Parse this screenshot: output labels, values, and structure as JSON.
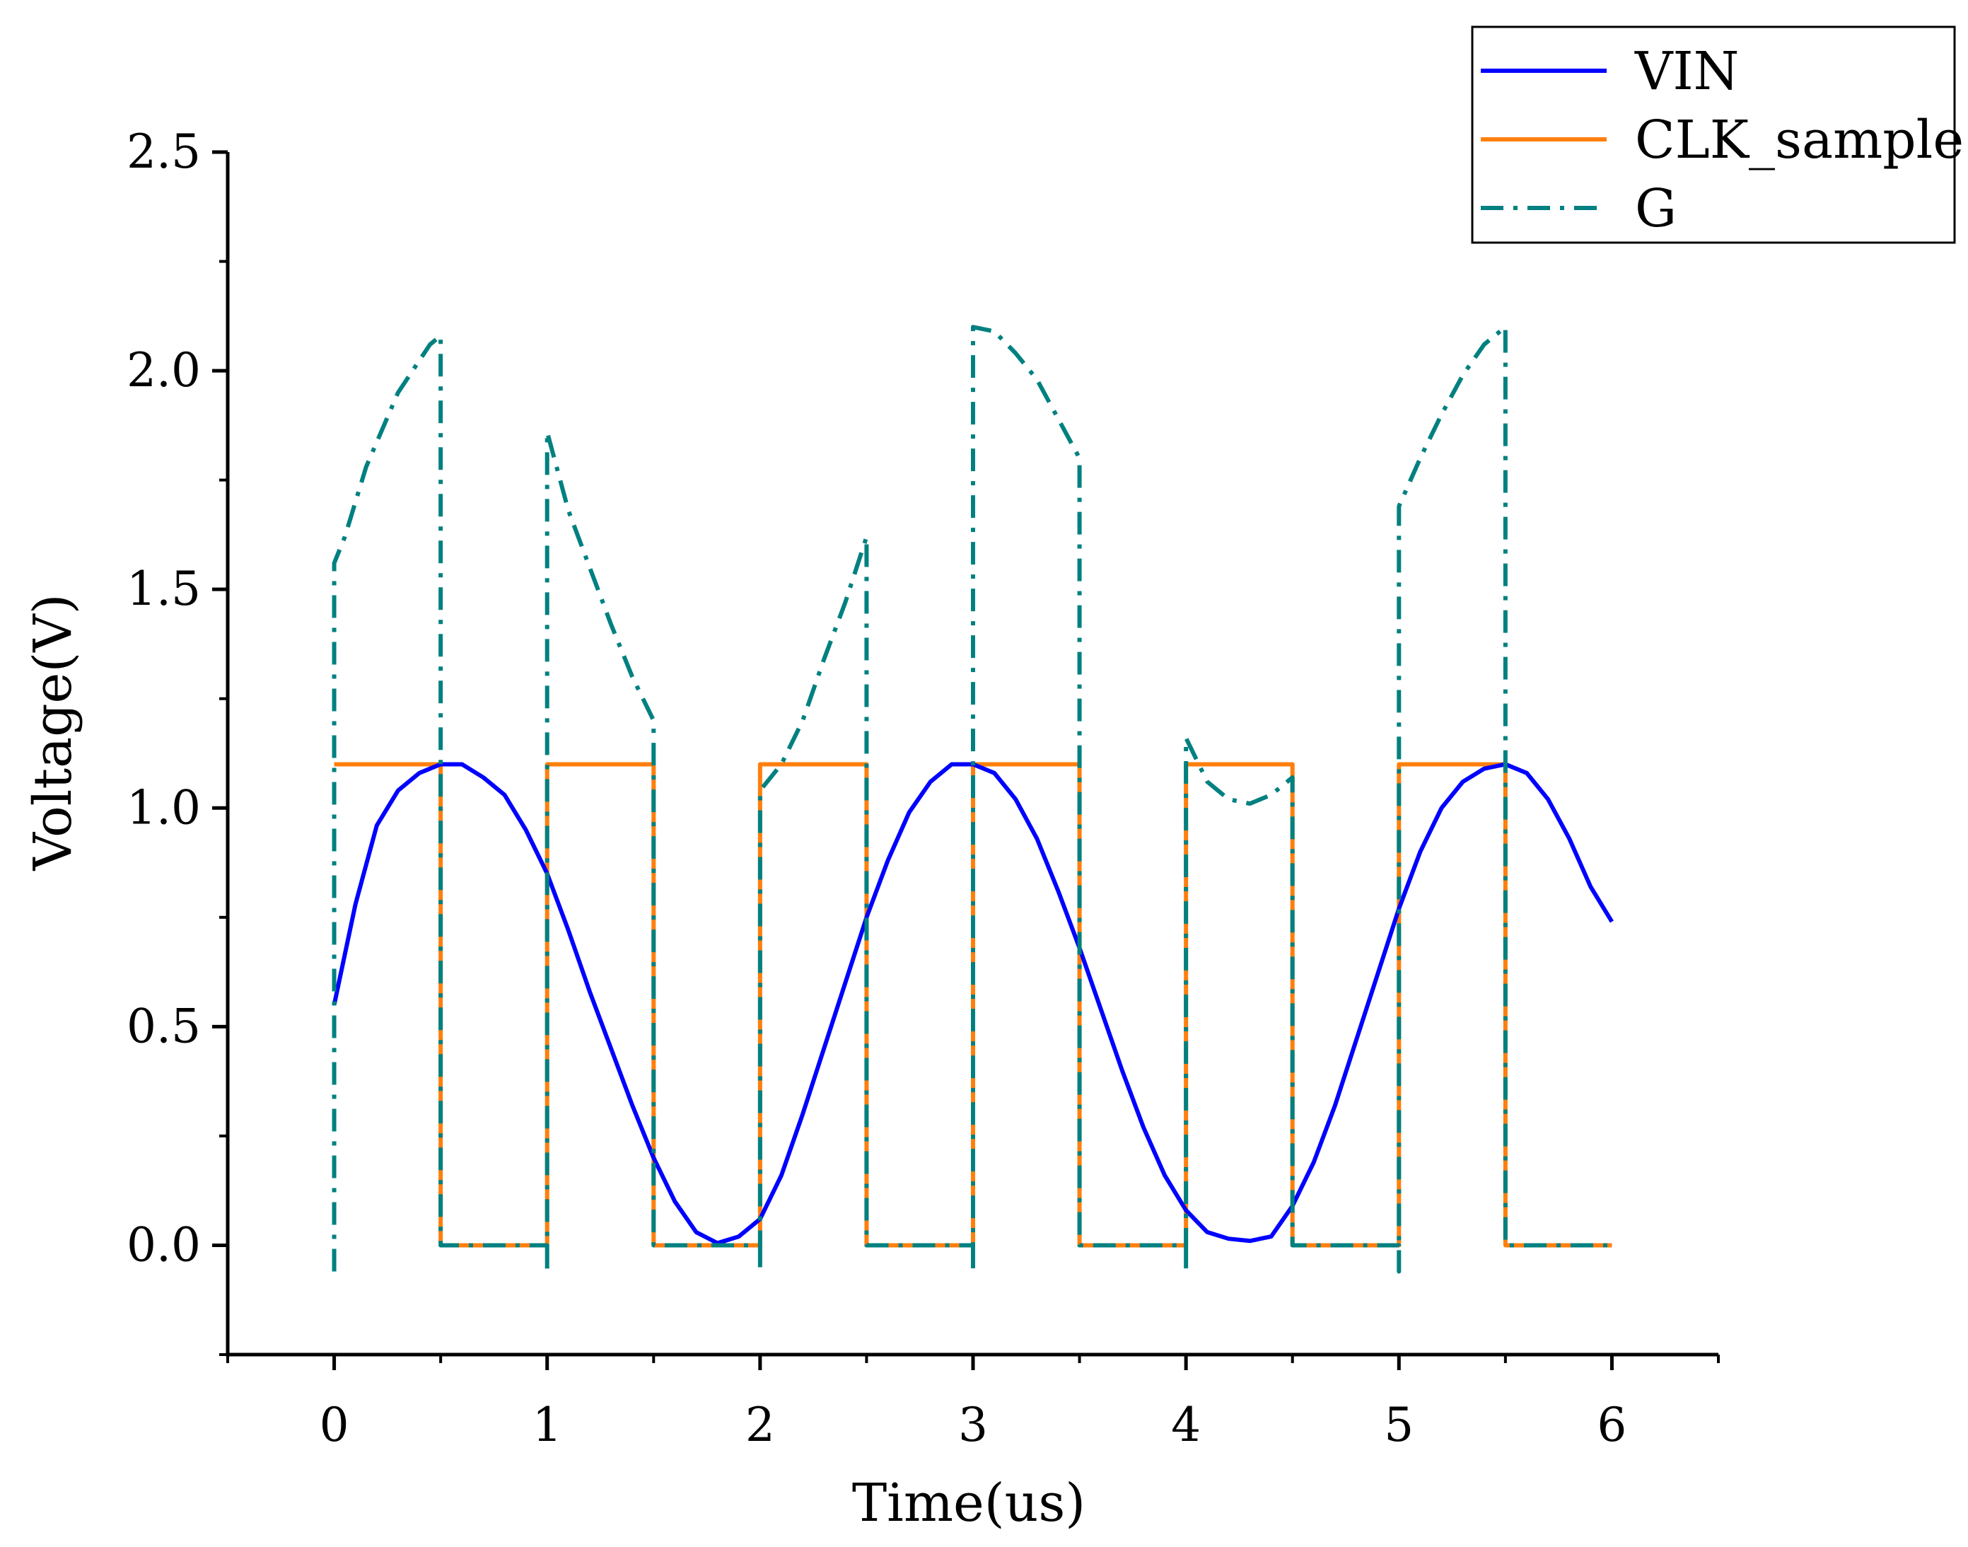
{
  "chart_data": {
    "type": "line",
    "title": "",
    "xlabel": "Time(us)",
    "ylabel": "Voltage(V)",
    "xlim": [
      -0.5,
      6.5
    ],
    "ylim": [
      -0.25,
      2.5
    ],
    "x_ticks": [
      0,
      1,
      2,
      3,
      4,
      5,
      6
    ],
    "x_tick_labels": [
      "0",
      "1",
      "2",
      "3",
      "4",
      "5",
      "6"
    ],
    "y_ticks": [
      0,
      0.5,
      1.0,
      1.5,
      2.0,
      2.5
    ],
    "y_tick_labels": [
      "0.0",
      "0.5",
      "1.0",
      "1.5",
      "2.0",
      "2.5"
    ],
    "grid": false,
    "legend_position": "top-right",
    "series": [
      {
        "name": "VIN",
        "color": "#0000ff",
        "style": "solid",
        "points": [
          [
            0,
            0.55
          ],
          [
            0.1,
            0.78
          ],
          [
            0.2,
            0.96
          ],
          [
            0.3,
            1.04
          ],
          [
            0.4,
            1.08
          ],
          [
            0.5,
            1.1
          ],
          [
            0.6,
            1.1
          ],
          [
            0.7,
            1.07
          ],
          [
            0.8,
            1.03
          ],
          [
            0.9,
            0.95
          ],
          [
            1.0,
            0.85
          ],
          [
            1.1,
            0.72
          ],
          [
            1.2,
            0.58
          ],
          [
            1.3,
            0.45
          ],
          [
            1.4,
            0.32
          ],
          [
            1.5,
            0.2
          ],
          [
            1.6,
            0.1
          ],
          [
            1.7,
            0.03
          ],
          [
            1.8,
            0.005
          ],
          [
            1.9,
            0.02
          ],
          [
            2.0,
            0.06
          ],
          [
            2.1,
            0.16
          ],
          [
            2.2,
            0.3
          ],
          [
            2.3,
            0.45
          ],
          [
            2.4,
            0.6
          ],
          [
            2.5,
            0.75
          ],
          [
            2.6,
            0.88
          ],
          [
            2.7,
            0.99
          ],
          [
            2.8,
            1.06
          ],
          [
            2.9,
            1.1
          ],
          [
            3.0,
            1.1
          ],
          [
            3.1,
            1.08
          ],
          [
            3.2,
            1.02
          ],
          [
            3.3,
            0.93
          ],
          [
            3.4,
            0.81
          ],
          [
            3.5,
            0.68
          ],
          [
            3.6,
            0.54
          ],
          [
            3.7,
            0.4
          ],
          [
            3.8,
            0.27
          ],
          [
            3.9,
            0.16
          ],
          [
            4.0,
            0.08
          ],
          [
            4.1,
            0.03
          ],
          [
            4.2,
            0.015
          ],
          [
            4.3,
            0.01
          ],
          [
            4.4,
            0.02
          ],
          [
            4.5,
            0.09
          ],
          [
            4.6,
            0.19
          ],
          [
            4.7,
            0.32
          ],
          [
            4.8,
            0.47
          ],
          [
            4.9,
            0.62
          ],
          [
            5.0,
            0.77
          ],
          [
            5.1,
            0.9
          ],
          [
            5.2,
            1.0
          ],
          [
            5.3,
            1.06
          ],
          [
            5.4,
            1.09
          ],
          [
            5.5,
            1.1
          ],
          [
            5.6,
            1.08
          ],
          [
            5.7,
            1.02
          ],
          [
            5.8,
            0.93
          ],
          [
            5.9,
            0.82
          ],
          [
            6.0,
            0.74
          ]
        ]
      },
      {
        "name": "CLK_sample",
        "color": "#ff7f0e",
        "style": "solid",
        "points": [
          [
            0,
            1.1
          ],
          [
            0.5,
            1.1
          ],
          [
            0.5,
            0
          ],
          [
            1.0,
            0
          ],
          [
            1.0,
            1.1
          ],
          [
            1.5,
            1.1
          ],
          [
            1.5,
            0
          ],
          [
            2.0,
            0
          ],
          [
            2.0,
            1.1
          ],
          [
            2.5,
            1.1
          ],
          [
            2.5,
            0
          ],
          [
            3.0,
            0
          ],
          [
            3.0,
            1.1
          ],
          [
            3.5,
            1.1
          ],
          [
            3.5,
            0
          ],
          [
            4.0,
            0
          ],
          [
            4.0,
            1.1
          ],
          [
            4.5,
            1.1
          ],
          [
            4.5,
            0
          ],
          [
            5.0,
            0
          ],
          [
            5.0,
            1.1
          ],
          [
            5.5,
            1.1
          ],
          [
            5.5,
            0
          ],
          [
            6.0,
            0
          ]
        ]
      },
      {
        "name": "G",
        "color": "#008080",
        "style": "dashdot",
        "points": [
          [
            0,
            -0.06
          ],
          [
            0,
            1.56
          ],
          [
            0.05,
            1.62
          ],
          [
            0.15,
            1.78
          ],
          [
            0.3,
            1.95
          ],
          [
            0.45,
            2.06
          ],
          [
            0.5,
            2.08
          ],
          [
            0.5,
            0
          ],
          [
            1.0,
            0
          ],
          [
            1.0,
            -0.06
          ],
          [
            1.0,
            1.86
          ],
          [
            1.1,
            1.68
          ],
          [
            1.2,
            1.55
          ],
          [
            1.3,
            1.42
          ],
          [
            1.4,
            1.3
          ],
          [
            1.5,
            1.2
          ],
          [
            1.5,
            0
          ],
          [
            2.0,
            0
          ],
          [
            2.0,
            -0.06
          ],
          [
            2.0,
            1.04
          ],
          [
            2.1,
            1.1
          ],
          [
            2.2,
            1.2
          ],
          [
            2.3,
            1.34
          ],
          [
            2.4,
            1.47
          ],
          [
            2.5,
            1.62
          ],
          [
            2.5,
            0
          ],
          [
            3.0,
            0
          ],
          [
            3.0,
            -0.06
          ],
          [
            3.0,
            2.1
          ],
          [
            3.1,
            2.09
          ],
          [
            3.2,
            2.04
          ],
          [
            3.3,
            1.98
          ],
          [
            3.4,
            1.89
          ],
          [
            3.5,
            1.8
          ],
          [
            3.5,
            0
          ],
          [
            4.0,
            0
          ],
          [
            4.0,
            -0.06
          ],
          [
            4.0,
            1.16
          ],
          [
            4.1,
            1.06
          ],
          [
            4.2,
            1.02
          ],
          [
            4.3,
            1.01
          ],
          [
            4.4,
            1.03
          ],
          [
            4.5,
            1.07
          ],
          [
            4.5,
            0
          ],
          [
            5.0,
            0
          ],
          [
            5.0,
            -0.06
          ],
          [
            5.0,
            1.69
          ],
          [
            5.1,
            1.8
          ],
          [
            5.2,
            1.9
          ],
          [
            5.3,
            1.99
          ],
          [
            5.4,
            2.06
          ],
          [
            5.5,
            2.1
          ],
          [
            5.5,
            0
          ],
          [
            6.0,
            0
          ]
        ]
      }
    ]
  }
}
